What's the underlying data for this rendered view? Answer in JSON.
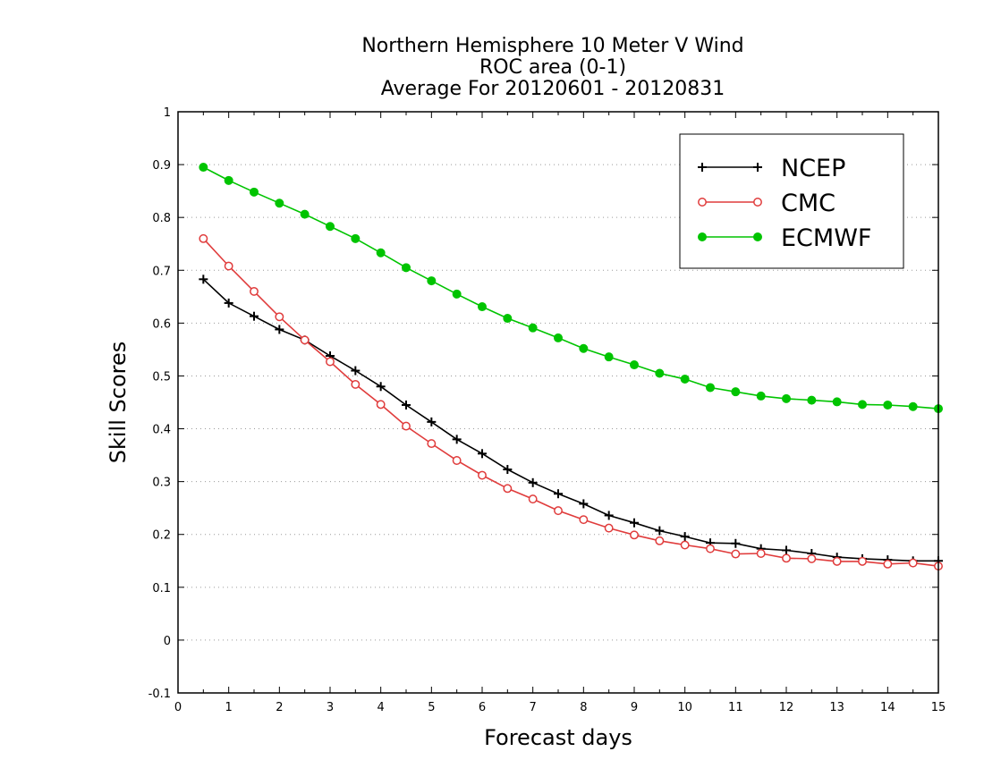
{
  "chart_data": {
    "type": "line",
    "title": "Northern Hemisphere 10 Meter V Wind",
    "subtitle": "ROC area (0-1)",
    "subtitle2": "Average For 20120601 - 20120831",
    "xlabel": "Forecast days",
    "ylabel": "Skill Scores",
    "xlim": [
      0,
      15
    ],
    "ylim": [
      -0.1,
      1
    ],
    "x_ticks": [
      "0",
      "1",
      "2",
      "3",
      "4",
      "5",
      "6",
      "7",
      "8",
      "9",
      "10",
      "11",
      "12",
      "13",
      "14",
      "15"
    ],
    "y_ticks": [
      "-0.1",
      "0",
      "0.1",
      "0.2",
      "0.3",
      "0.4",
      "0.5",
      "0.6",
      "0.7",
      "0.8",
      "0.9",
      "1"
    ],
    "grid": "horizontal dotted",
    "legend_position": "top-right",
    "x": [
      0.5,
      1,
      1.5,
      2,
      2.5,
      3,
      3.5,
      4,
      4.5,
      5,
      5.5,
      6,
      6.5,
      7,
      7.5,
      8,
      8.5,
      9,
      9.5,
      10,
      10.5,
      11,
      11.5,
      12,
      12.5,
      13,
      13.5,
      14,
      14.5,
      15
    ],
    "series": [
      {
        "name": "NCEP",
        "color": "#000000",
        "marker": "plus",
        "values": [
          0.683,
          0.638,
          0.613,
          0.588,
          0.568,
          0.538,
          0.51,
          0.48,
          0.445,
          0.413,
          0.38,
          0.353,
          0.323,
          0.298,
          0.277,
          0.258,
          0.236,
          0.222,
          0.207,
          0.196,
          0.184,
          0.183,
          0.173,
          0.17,
          0.164,
          0.157,
          0.154,
          0.152,
          0.15,
          0.15
        ]
      },
      {
        "name": "CMC",
        "color": "#e03c3c",
        "marker": "open-circle",
        "values": [
          0.76,
          0.708,
          0.66,
          0.612,
          0.568,
          0.527,
          0.484,
          0.446,
          0.405,
          0.372,
          0.34,
          0.312,
          0.287,
          0.267,
          0.245,
          0.228,
          0.212,
          0.199,
          0.188,
          0.18,
          0.173,
          0.163,
          0.164,
          0.155,
          0.154,
          0.149,
          0.149,
          0.144,
          0.146,
          0.14
        ]
      },
      {
        "name": "ECMWF",
        "color": "#00c400",
        "marker": "filled-circle",
        "values": [
          0.895,
          0.87,
          0.848,
          0.827,
          0.806,
          0.783,
          0.76,
          0.733,
          0.705,
          0.68,
          0.655,
          0.631,
          0.609,
          0.591,
          0.572,
          0.552,
          0.536,
          0.521,
          0.505,
          0.494,
          0.478,
          0.47,
          0.462,
          0.457,
          0.454,
          0.451,
          0.446,
          0.445,
          0.442,
          0.438
        ]
      }
    ]
  }
}
